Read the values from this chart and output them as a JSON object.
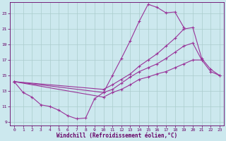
{
  "bg_color": "#cce8ee",
  "line_color": "#993399",
  "grid_color": "#aacccc",
  "xlabel": "Windchill (Refroidissement éolien,°C)",
  "xlabel_color": "#660066",
  "tick_color": "#660066",
  "xlim": [
    -0.5,
    23.5
  ],
  "ylim": [
    8.5,
    24.5
  ],
  "xticks": [
    0,
    1,
    2,
    3,
    4,
    5,
    6,
    7,
    8,
    9,
    10,
    11,
    12,
    13,
    14,
    15,
    16,
    17,
    18,
    19,
    20,
    21,
    22,
    23
  ],
  "yticks": [
    9,
    11,
    13,
    15,
    17,
    19,
    21,
    23
  ],
  "lines": [
    {
      "x": [
        0,
        1,
        2,
        3,
        4,
        5,
        6,
        7,
        8,
        9,
        10,
        11,
        12,
        13,
        14,
        15,
        16,
        17,
        18,
        19
      ],
      "y": [
        14.2,
        12.8,
        12.2,
        11.2,
        11.0,
        10.5,
        9.8,
        9.4,
        9.5,
        12.0,
        12.8,
        15.0,
        17.2,
        19.5,
        22.0,
        24.2,
        23.8,
        23.1,
        23.2,
        21.2
      ]
    },
    {
      "x": [
        0,
        10,
        11,
        12,
        13,
        14,
        15,
        16,
        17,
        18,
        19,
        20,
        21,
        22,
        23
      ],
      "y": [
        14.2,
        13.2,
        13.8,
        14.5,
        15.2,
        16.2,
        17.0,
        17.8,
        18.8,
        19.8,
        21.0,
        21.2,
        17.2,
        15.8,
        15.0
      ]
    },
    {
      "x": [
        0,
        10,
        11,
        12,
        13,
        14,
        15,
        16,
        17,
        18,
        19,
        20,
        21
      ],
      "y": [
        14.2,
        12.8,
        13.2,
        14.0,
        14.8,
        15.5,
        16.0,
        16.5,
        17.2,
        18.0,
        18.8,
        19.2,
        17.0
      ]
    },
    {
      "x": [
        0,
        10,
        11,
        12,
        13,
        14,
        15,
        16,
        17,
        18,
        19,
        20,
        21,
        22,
        23
      ],
      "y": [
        14.2,
        12.2,
        12.8,
        13.2,
        13.8,
        14.5,
        14.8,
        15.2,
        15.5,
        16.0,
        16.5,
        17.0,
        17.0,
        15.5,
        15.0
      ]
    }
  ]
}
